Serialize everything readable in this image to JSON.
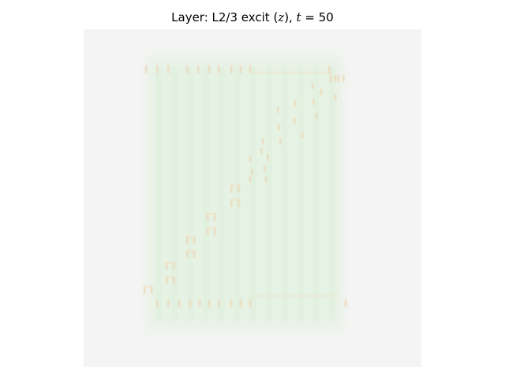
{
  "figure": {
    "title_prefix": "Layer: L2/3 excit (",
    "title_var": "z",
    "title_mid": "), ",
    "title_time_var": "t",
    "title_time_eq": " = ",
    "title_time_value": "50"
  },
  "image": {
    "colors": {
      "background": "#f4f4f4",
      "field": "#e6f2e4",
      "field_edge": "#edf3eb",
      "column_stripe": "#dcedd9",
      "marker": "#f2e2c8",
      "marker_dark": "#ecd8b8"
    }
  }
}
